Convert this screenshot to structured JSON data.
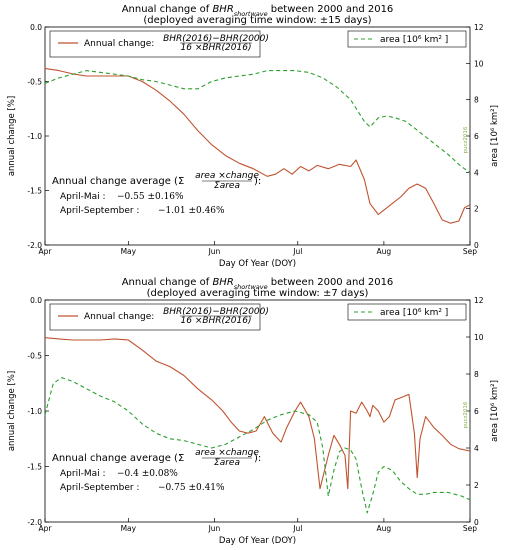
{
  "chart_data": [
    {
      "type": "line",
      "title": "Annual change of BHR_shortwave between 2000 and 2016",
      "title_base": "Annual change of ",
      "title_var": "BHR",
      "title_sub": "shortwave",
      "title_tail": " between 2000 and 2016",
      "subtitle": "(deployed averaging time window: ±15 days)",
      "xlabel": "Day Of Year (DOY)",
      "ylabel": "annual change [%]",
      "ylabel_right": "area [10⁶ km²]",
      "right_note": "pucz2016",
      "x_tick_labels": [
        "Apr",
        "May",
        "Jun",
        "Jul",
        "Aug",
        "Sep"
      ],
      "x_tick_doy": [
        91,
        121,
        152,
        182,
        213,
        244
      ],
      "xlim": [
        91,
        244
      ],
      "ylim": [
        -2.0,
        0.0
      ],
      "y_ticks": [
        "-2.0",
        "-1.5",
        "-1.0",
        "-0.5",
        "0.0"
      ],
      "y2lim": [
        0,
        12
      ],
      "y2_ticks": [
        "0",
        "2",
        "4",
        "6",
        "8",
        "10",
        "12"
      ],
      "legend_left": {
        "label": "Annual change:",
        "frac_num": "BHR(2016)−BHR(2000)",
        "frac_den": "16 ×BHR(2016)"
      },
      "legend_right": {
        "label": "area [10⁶  km² ]"
      },
      "annotation": {
        "heading": "Annual change average (Σ",
        "heading_num": "area ×change",
        "heading_den": "Σarea",
        "heading_tail": "):",
        "line1_label": "April-Mai :",
        "line1_value": "−0.55 ±0.16%",
        "line2_label": "April-September :",
        "line2_value": "−1.01 ±0.46%"
      },
      "series": [
        {
          "name": "Annual change",
          "axis": "left",
          "color": "#c0532f",
          "style": "solid",
          "x": [
            91,
            96,
            101,
            106,
            111,
            116,
            121,
            126,
            131,
            136,
            141,
            146,
            151,
            156,
            161,
            166,
            171,
            174,
            177,
            180,
            183,
            186,
            189,
            193,
            197,
            201,
            203,
            206,
            208,
            211,
            213,
            216,
            219,
            222,
            225,
            228,
            231,
            234,
            237,
            240,
            242,
            244
          ],
          "y": [
            -0.38,
            -0.4,
            -0.43,
            -0.45,
            -0.45,
            -0.45,
            -0.45,
            -0.5,
            -0.58,
            -0.68,
            -0.8,
            -0.95,
            -1.08,
            -1.18,
            -1.25,
            -1.3,
            -1.37,
            -1.35,
            -1.3,
            -1.35,
            -1.28,
            -1.32,
            -1.27,
            -1.3,
            -1.26,
            -1.28,
            -1.22,
            -1.4,
            -1.62,
            -1.72,
            -1.68,
            -1.62,
            -1.56,
            -1.48,
            -1.44,
            -1.48,
            -1.62,
            -1.77,
            -1.8,
            -1.78,
            -1.66,
            -1.63
          ]
        },
        {
          "name": "area [10⁶ km²]",
          "axis": "right",
          "color": "#2ca02c",
          "style": "dashed",
          "x": [
            91,
            96,
            101,
            106,
            111,
            116,
            121,
            126,
            131,
            136,
            141,
            146,
            151,
            156,
            161,
            166,
            171,
            176,
            181,
            186,
            191,
            196,
            201,
            206,
            208,
            211,
            214,
            217,
            221,
            226,
            231,
            236,
            241,
            244
          ],
          "y": [
            8.9,
            9.2,
            9.4,
            9.6,
            9.5,
            9.4,
            9.3,
            9.1,
            9.0,
            8.8,
            8.6,
            8.6,
            9.0,
            9.2,
            9.3,
            9.4,
            9.6,
            9.6,
            9.6,
            9.5,
            9.2,
            8.7,
            8.0,
            6.8,
            6.5,
            7.0,
            7.1,
            7.0,
            6.8,
            6.2,
            5.6,
            5.0,
            4.3,
            4.0
          ]
        }
      ]
    },
    {
      "type": "line",
      "title": "Annual change of BHR_shortwave between 2000 and 2016",
      "title_base": "Annual change of ",
      "title_var": "BHR",
      "title_sub": "shortwave",
      "title_tail": " between 2000 and 2016",
      "subtitle": "(deployed averaging time window: ±7 days)",
      "xlabel": "Day Of Year (DOY)",
      "ylabel": "annual change [%]",
      "ylabel_right": "area [10⁶ km²]",
      "right_note": "pucz2016",
      "x_tick_labels": [
        "Apr",
        "May",
        "Jun",
        "Jul",
        "Aug",
        "Sep"
      ],
      "x_tick_doy": [
        91,
        121,
        152,
        182,
        213,
        244
      ],
      "xlim": [
        91,
        244
      ],
      "ylim": [
        -2.0,
        0.0
      ],
      "y_ticks": [
        "-2.0",
        "-1.5",
        "-1.0",
        "-0.5",
        "0.0"
      ],
      "y2lim": [
        0,
        12
      ],
      "y2_ticks": [
        "0",
        "2",
        "4",
        "6",
        "8",
        "10",
        "12"
      ],
      "legend_left": {
        "label": "Annual change:",
        "frac_num": "BHR(2016)−BHR(2000)",
        "frac_den": "16 ×BHR(2016)"
      },
      "legend_right": {
        "label": "area [10⁶  km² ]"
      },
      "annotation": {
        "heading": "Annual change average (Σ",
        "heading_num": "area ×change",
        "heading_den": "Σarea",
        "heading_tail": "):",
        "line1_label": "April-Mai :",
        "line1_value": "−0.4 ±0.08%",
        "line2_label": "April-September :",
        "line2_value": "−0.75 ±0.41%"
      },
      "series": [
        {
          "name": "Annual change",
          "axis": "left",
          "color": "#c0532f",
          "style": "solid",
          "x": [
            91,
            96,
            101,
            106,
            111,
            116,
            121,
            126,
            131,
            136,
            141,
            146,
            151,
            155,
            158,
            161,
            164,
            167,
            170,
            173,
            176,
            178,
            181,
            183,
            186,
            188,
            190,
            193,
            195,
            197,
            199,
            200,
            201,
            203,
            205,
            207,
            208,
            209,
            211,
            213,
            215,
            217,
            219,
            222,
            224,
            225,
            226,
            228,
            231,
            234,
            237,
            240,
            244
          ],
          "y": [
            -0.34,
            -0.35,
            -0.36,
            -0.36,
            -0.36,
            -0.35,
            -0.36,
            -0.45,
            -0.55,
            -0.6,
            -0.68,
            -0.8,
            -0.9,
            -1.0,
            -1.1,
            -1.18,
            -1.2,
            -1.18,
            -1.05,
            -1.2,
            -1.28,
            -1.15,
            -1.0,
            -0.92,
            -1.05,
            -1.25,
            -1.7,
            -1.4,
            -1.22,
            -1.3,
            -1.4,
            -1.7,
            -1.0,
            -1.02,
            -0.92,
            -1.0,
            -1.05,
            -0.95,
            -1.0,
            -1.1,
            -1.05,
            -0.9,
            -0.88,
            -0.85,
            -1.2,
            -1.6,
            -1.25,
            -1.05,
            -1.15,
            -1.22,
            -1.3,
            -1.34,
            -1.36
          ]
        },
        {
          "name": "area [10⁶ km²]",
          "axis": "right",
          "color": "#2ca02c",
          "style": "dashed",
          "x": [
            91,
            94,
            97,
            101,
            106,
            111,
            116,
            121,
            126,
            131,
            136,
            141,
            146,
            151,
            156,
            161,
            166,
            171,
            176,
            181,
            186,
            189,
            191,
            193,
            195,
            197,
            199,
            201,
            203,
            205,
            207,
            209,
            211,
            213,
            216,
            219,
            222,
            225,
            228,
            231,
            236,
            241,
            244
          ],
          "y": [
            5.8,
            7.5,
            7.8,
            7.6,
            7.2,
            6.8,
            6.5,
            6.0,
            5.3,
            4.8,
            4.5,
            4.4,
            4.2,
            4.0,
            4.2,
            4.6,
            5.0,
            5.5,
            5.8,
            6.0,
            5.8,
            5.4,
            4.0,
            1.4,
            2.8,
            3.8,
            4.0,
            3.9,
            3.4,
            1.8,
            0.5,
            1.5,
            2.7,
            3.0,
            2.8,
            2.2,
            1.8,
            1.5,
            1.5,
            1.6,
            1.6,
            1.4,
            1.2
          ]
        }
      ]
    }
  ]
}
